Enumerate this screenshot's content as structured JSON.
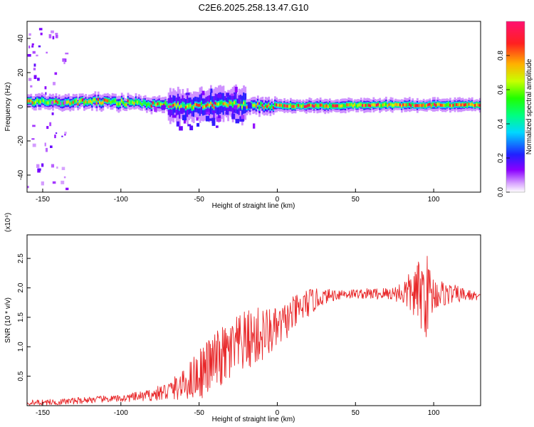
{
  "title": "C2E6.2025.258.13.47.G10",
  "chart_data": [
    {
      "type": "heatmap",
      "name": "spectrogram",
      "xlabel": "Height of straight line (km)",
      "ylabel": "Frequency (Hz)",
      "xlim": [
        -160,
        130
      ],
      "ylim": [
        -50,
        50
      ],
      "x_ticks": [
        -150,
        -100,
        -50,
        0,
        50,
        100
      ],
      "y_ticks": [
        -40,
        -20,
        0,
        20,
        40
      ],
      "colorbar": {
        "label": "Normalized spectral amplitude",
        "range": [
          0.0,
          1.0
        ],
        "ticks": [
          0.0,
          0.2,
          0.4,
          0.6,
          0.8
        ],
        "colors": [
          "#ffffff",
          "#8b00ff",
          "#2020ff",
          "#00e0ff",
          "#00ff60",
          "#c8ff00",
          "#ffb000",
          "#ff2020",
          "#ff1060"
        ]
      },
      "ridge": {
        "x": [
          -160,
          -150,
          -140,
          -130,
          -120,
          -110,
          -100,
          -90,
          -80,
          -70,
          -60,
          -50,
          -40,
          -30,
          -20,
          -10,
          0,
          10,
          20,
          30,
          40,
          50,
          60,
          70,
          80,
          90,
          100,
          110,
          120,
          130
        ],
        "freq": [
          3,
          3,
          2.5,
          2.5,
          3,
          3,
          2.5,
          2,
          1.5,
          1,
          0.5,
          0.5,
          1,
          1.5,
          1,
          0.5,
          0.5,
          0.5,
          0.5,
          0.5,
          0.5,
          1,
          1,
          1,
          1,
          1,
          1,
          1,
          1,
          1
        ]
      },
      "grid": false,
      "legend": "colorbar-right"
    },
    {
      "type": "line",
      "name": "snr",
      "xlabel": "Height of straight line (km)",
      "ylabel": "SNR (10 * v/v)",
      "y_multiplier": "(x10⁴)",
      "xlim": [
        -160,
        130
      ],
      "ylim": [
        0,
        2.9
      ],
      "x_ticks": [
        -150,
        -100,
        -50,
        0,
        50,
        100
      ],
      "y_ticks": [
        0.5,
        1.0,
        1.5,
        2.0,
        2.5
      ],
      "color": "#e8282a",
      "trend": {
        "x": [
          -160,
          -140,
          -120,
          -100,
          -80,
          -70,
          -60,
          -50,
          -40,
          -30,
          -20,
          -10,
          0,
          10,
          20,
          30,
          40,
          50,
          60,
          70,
          80,
          90,
          100,
          110,
          120,
          130
        ],
        "y": [
          0.05,
          0.06,
          0.1,
          0.12,
          0.18,
          0.25,
          0.35,
          0.55,
          0.75,
          0.9,
          1.1,
          1.2,
          1.3,
          1.55,
          1.75,
          1.85,
          1.9,
          1.9,
          1.9,
          1.9,
          1.92,
          1.9,
          1.9,
          1.9,
          1.88,
          1.85
        ]
      },
      "noise_amp": {
        "x": [
          -160,
          -100,
          -80,
          -60,
          -50,
          -30,
          -10,
          0,
          20,
          30,
          50,
          75,
          85,
          95,
          100,
          110,
          130
        ],
        "a": [
          0.05,
          0.06,
          0.1,
          0.25,
          0.45,
          0.55,
          0.5,
          0.35,
          0.25,
          0.12,
          0.08,
          0.12,
          0.35,
          0.75,
          0.3,
          0.18,
          0.05
        ]
      },
      "grid": false
    }
  ]
}
